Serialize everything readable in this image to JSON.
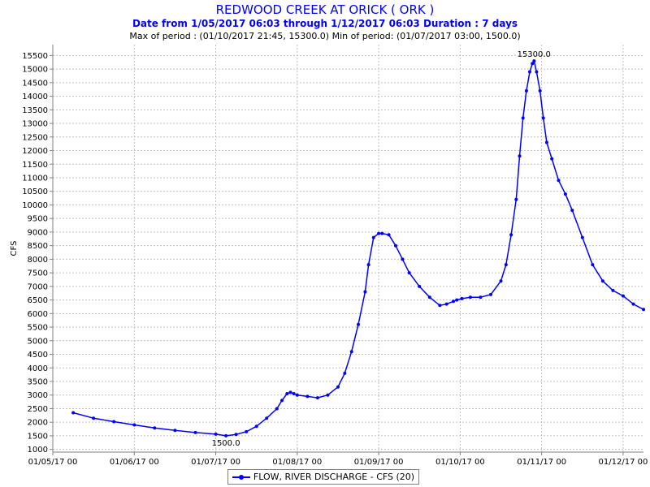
{
  "colors": {
    "title": "#0000ff",
    "series": "#0000ff",
    "grid": "#c0c0c0",
    "axis": "#808080"
  },
  "chart_data": {
    "type": "line",
    "title": "REDWOOD CREEK AT ORICK ( ORK )",
    "subtitle": "Date from 1/05/2017 06:03 through 1/12/2017 06:03 Duration : 7 days",
    "stats_line": "Max of period : (01/10/2017 21:45, 15300.0)  Min of period: (01/07/2017 03:00,  1500.0)",
    "xlabel": "",
    "ylabel": "CFS",
    "xlim": [
      "01/05/17 00",
      "01/12/17 06"
    ],
    "ylim": [
      900,
      15900
    ],
    "x_ticks": [
      "01/05/17 00",
      "01/06/17 00",
      "01/07/17 00",
      "01/08/17 00",
      "01/09/17 00",
      "01/10/17 00",
      "01/11/17 00",
      "01/12/17 00"
    ],
    "y_ticks": [
      1000,
      1500,
      2000,
      2500,
      3000,
      3500,
      4000,
      4500,
      5000,
      5500,
      6000,
      6500,
      7000,
      7500,
      8000,
      8500,
      9000,
      9500,
      10000,
      10500,
      11000,
      11500,
      12000,
      12500,
      13000,
      13500,
      14000,
      14500,
      15000,
      15500
    ],
    "grid": true,
    "legend": "bottom-center",
    "annotations": [
      {
        "text": "15300.0",
        "x": "01/10/17 21:45",
        "y": 15300
      },
      {
        "text": "1500.0",
        "x": "01/07/17 03:00",
        "y": 1500
      }
    ],
    "series": [
      {
        "name": "FLOW, RIVER DISCHARGE - CFS (20)",
        "x": [
          "01/05/17 06:00",
          "01/05/17 12:00",
          "01/05/17 18:00",
          "01/06/17 00:00",
          "01/06/17 06:00",
          "01/06/17 12:00",
          "01/06/17 18:00",
          "01/07/17 00:00",
          "01/07/17 03:00",
          "01/07/17 06:00",
          "01/07/17 09:00",
          "01/07/17 12:00",
          "01/07/17 15:00",
          "01/07/17 18:00",
          "01/07/17 19:30",
          "01/07/17 21:00",
          "01/07/17 22:00",
          "01/07/17 23:00",
          "01/08/17 00:00",
          "01/08/17 03:00",
          "01/08/17 06:00",
          "01/08/17 09:00",
          "01/08/17 12:00",
          "01/08/17 14:00",
          "01/08/17 16:00",
          "01/08/17 18:00",
          "01/08/17 20:00",
          "01/08/17 21:00",
          "01/08/17 22:30",
          "01/09/17 00:00",
          "01/09/17 01:00",
          "01/09/17 03:00",
          "01/09/17 05:00",
          "01/09/17 07:00",
          "01/09/17 09:00",
          "01/09/17 12:00",
          "01/09/17 15:00",
          "01/09/17 18:00",
          "01/09/17 20:00",
          "01/09/17 22:00",
          "01/09/17 23:00",
          "01/10/17 00:30",
          "01/10/17 03:00",
          "01/10/17 06:00",
          "01/10/17 09:00",
          "01/10/17 12:00",
          "01/10/17 13:30",
          "01/10/17 15:00",
          "01/10/17 16:30",
          "01/10/17 17:30",
          "01/10/17 18:30",
          "01/10/17 19:30",
          "01/10/17 20:30",
          "01/10/17 21:15",
          "01/10/17 21:45",
          "01/10/17 22:30",
          "01/10/17 23:30",
          "01/11/17 00:30",
          "01/11/17 01:30",
          "01/11/17 03:00",
          "01/11/17 05:00",
          "01/11/17 07:00",
          "01/11/17 09:00",
          "01/11/17 12:00",
          "01/11/17 15:00",
          "01/11/17 18:00",
          "01/11/17 21:00",
          "01/12/17 00:00",
          "01/12/17 03:00",
          "01/12/17 06:00"
        ],
        "values": [
          2350,
          2150,
          2020,
          1900,
          1790,
          1700,
          1620,
          1560,
          1500,
          1550,
          1650,
          1850,
          2150,
          2500,
          2800,
          3050,
          3100,
          3050,
          3000,
          2950,
          2900,
          3000,
          3300,
          3800,
          4600,
          5600,
          6800,
          7800,
          8800,
          8950,
          8950,
          8900,
          8500,
          8000,
          7500,
          7000,
          6600,
          6300,
          6350,
          6450,
          6500,
          6550,
          6600,
          6600,
          6700,
          7200,
          7800,
          8900,
          10200,
          11800,
          13200,
          14200,
          14900,
          15200,
          15300,
          14900,
          14200,
          13200,
          12300,
          11700,
          10900,
          10400,
          9800,
          8800,
          7800,
          7200,
          6850,
          6650,
          6350,
          6150
        ]
      }
    ]
  }
}
